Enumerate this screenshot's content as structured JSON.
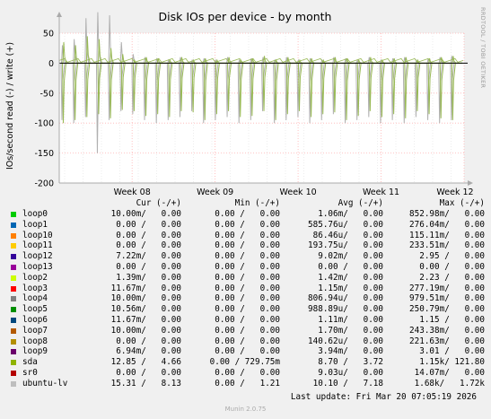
{
  "chart_data": {
    "type": "line",
    "title": "Disk IOs per device - by month",
    "ylabel": "IOs/second read (-) / write (+)",
    "side_text": "RRDTOOL / TOBI OETIKER",
    "ylim": [
      -200,
      50
    ],
    "yticks": [
      50,
      0,
      -50,
      -100,
      -150,
      -200
    ],
    "ytick_labels": [
      "50",
      "0",
      "-50",
      "-100",
      "-150",
      "-200"
    ],
    "xticks": [
      {
        "label": "Week 08",
        "pos": 0.18
      },
      {
        "label": "Week 09",
        "pos": 0.385
      },
      {
        "label": "Week 10",
        "pos": 0.59
      },
      {
        "label": "Week 11",
        "pos": 0.795
      },
      {
        "label": "Week 12",
        "pos": 1.0
      }
    ],
    "series_colors": {
      "sda": "#98b954",
      "ubuntu-lv": "#b0b0b0"
    },
    "sda_read_spikes": [
      -100,
      -95,
      -90,
      -85,
      -92,
      -78,
      -80,
      -88,
      -85,
      -90,
      -80,
      -82,
      -95,
      -85,
      -80,
      -90,
      -88,
      -80,
      -95,
      -85,
      -80,
      -90,
      -85,
      -82,
      -95,
      -88,
      -80,
      -90,
      -85,
      -92,
      -80,
      -85,
      -92,
      -95
    ],
    "sda_write_spikes": [
      35,
      30,
      45,
      40,
      25,
      15,
      5,
      10,
      8,
      5,
      10,
      5,
      8,
      5,
      10,
      5,
      8,
      12,
      5,
      10,
      5,
      8,
      5,
      10,
      8,
      5,
      10,
      5,
      8,
      10,
      5,
      8,
      10,
      12
    ],
    "ubuntu_read_spikes": [
      -95,
      -100,
      -90,
      -150,
      -95,
      -80,
      -85,
      -95,
      -100,
      -95,
      -90,
      -80,
      -100,
      -95,
      -90,
      -100,
      -95,
      -80,
      -100,
      -95,
      -90,
      -100,
      -95,
      -85,
      -100,
      -95,
      -90,
      -100,
      -95,
      -100,
      -90,
      -95,
      -100,
      -95
    ],
    "ubuntu_write_spikes": [
      30,
      40,
      75,
      85,
      80,
      35,
      15,
      10,
      8,
      5,
      10,
      5,
      8,
      5,
      10,
      5,
      8,
      10,
      5,
      10,
      5,
      8,
      5,
      10,
      8,
      5,
      10,
      5,
      8,
      10,
      5,
      8,
      10,
      12
    ],
    "legend": {
      "headers": {
        "cur": "Cur (-/+)",
        "min": "Min (-/+)",
        "avg": "Avg (-/+)",
        "max": "Max (-/+)"
      },
      "rows": [
        {
          "name": "loop0",
          "color": "#00cc00",
          "cur": "10.00m/   0.00",
          "min": "0.00 /   0.00",
          "avg": "1.06m/   0.00",
          "max": "852.98m/   0.00"
        },
        {
          "name": "loop1",
          "color": "#0066b3",
          "cur": "0.00 /   0.00",
          "min": "0.00 /   0.00",
          "avg": "585.76u/   0.00",
          "max": "276.04m/   0.00"
        },
        {
          "name": "loop10",
          "color": "#ff8000",
          "cur": "0.00 /   0.00",
          "min": "0.00 /   0.00",
          "avg": "86.46u/   0.00",
          "max": "115.11m/   0.00"
        },
        {
          "name": "loop11",
          "color": "#ffcc00",
          "cur": "0.00 /   0.00",
          "min": "0.00 /   0.00",
          "avg": "193.75u/   0.00",
          "max": "233.51m/   0.00"
        },
        {
          "name": "loop12",
          "color": "#330099",
          "cur": "7.22m/   0.00",
          "min": "0.00 /   0.00",
          "avg": "9.02m/   0.00",
          "max": "2.95 /   0.00"
        },
        {
          "name": "loop13",
          "color": "#990099",
          "cur": "0.00 /   0.00",
          "min": "0.00 /   0.00",
          "avg": "0.00 /   0.00",
          "max": "0.00 /   0.00"
        },
        {
          "name": "loop2",
          "color": "#ccff00",
          "cur": "1.39m/   0.00",
          "min": "0.00 /   0.00",
          "avg": "1.42m/   0.00",
          "max": "2.23 /   0.00"
        },
        {
          "name": "loop3",
          "color": "#ff0000",
          "cur": "11.67m/   0.00",
          "min": "0.00 /   0.00",
          "avg": "1.15m/   0.00",
          "max": "277.19m/   0.00"
        },
        {
          "name": "loop4",
          "color": "#808080",
          "cur": "10.00m/   0.00",
          "min": "0.00 /   0.00",
          "avg": "806.94u/   0.00",
          "max": "979.51m/   0.00"
        },
        {
          "name": "loop5",
          "color": "#008f00",
          "cur": "10.56m/   0.00",
          "min": "0.00 /   0.00",
          "avg": "988.89u/   0.00",
          "max": "250.79m/   0.00"
        },
        {
          "name": "loop6",
          "color": "#00487d",
          "cur": "11.67m/   0.00",
          "min": "0.00 /   0.00",
          "avg": "1.11m/   0.00",
          "max": "1.15 /   0.00"
        },
        {
          "name": "loop7",
          "color": "#b35a00",
          "cur": "10.00m/   0.00",
          "min": "0.00 /   0.00",
          "avg": "1.70m/   0.00",
          "max": "243.38m/   0.00"
        },
        {
          "name": "loop8",
          "color": "#b38f00",
          "cur": "0.00 /   0.00",
          "min": "0.00 /   0.00",
          "avg": "140.62u/   0.00",
          "max": "221.63m/   0.00"
        },
        {
          "name": "loop9",
          "color": "#6b006b",
          "cur": "6.94m/   0.00",
          "min": "0.00 /   0.00",
          "avg": "3.94m/   0.00",
          "max": "3.01 /   0.00"
        },
        {
          "name": "sda",
          "color": "#8fb300",
          "cur": "12.85 /   4.66",
          "min": "0.00 / 729.75m",
          "avg": "8.70 /   3.72",
          "max": "1.15k/ 121.80"
        },
        {
          "name": "sr0",
          "color": "#b30000",
          "cur": "0.00 /   0.00",
          "min": "0.00 /   0.00",
          "avg": "9.03u/   0.00",
          "max": "14.07m/   0.00"
        },
        {
          "name": "ubuntu-lv",
          "color": "#bebebe",
          "cur": "15.31 /   8.13",
          "min": "0.00 /   1.21",
          "avg": "10.10 /   7.18",
          "max": "1.68k/   1.72k"
        }
      ]
    }
  },
  "last_update": "Last update: Fri Mar 20 07:05:19 2026",
  "footer": "Munin 2.0.75"
}
